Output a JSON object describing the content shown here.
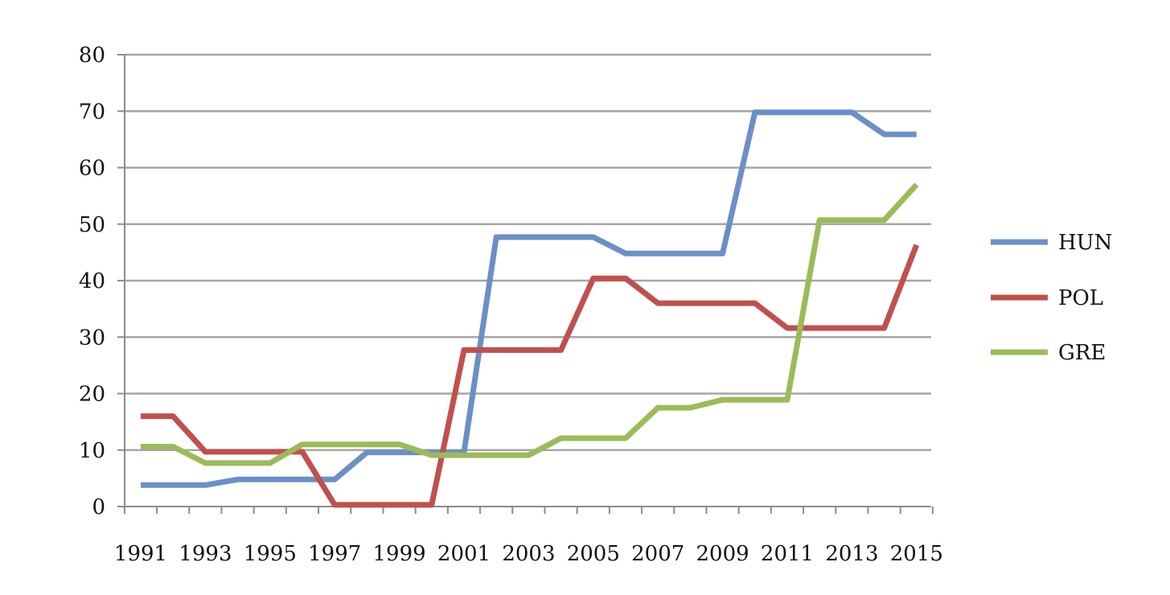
{
  "chart_data": {
    "type": "line",
    "title": "",
    "xlabel": "",
    "ylabel": "",
    "x": [
      1991,
      1992,
      1993,
      1994,
      1995,
      1996,
      1997,
      1998,
      1999,
      2000,
      2001,
      2002,
      2003,
      2004,
      2005,
      2006,
      2007,
      2008,
      2009,
      2010,
      2011,
      2012,
      2013,
      2014,
      2015
    ],
    "x_tick_labels": [
      "1991",
      "1993",
      "1995",
      "1997",
      "1999",
      "2001",
      "2003",
      "2005",
      "2007",
      "2009",
      "2011",
      "2013",
      "2015"
    ],
    "ylim": [
      0,
      80
    ],
    "y_ticks": [
      0,
      10,
      20,
      30,
      40,
      50,
      60,
      70,
      80
    ],
    "y_tick_labels": [
      "0",
      "10",
      "20",
      "30",
      "40",
      "50",
      "60",
      "70",
      "80"
    ],
    "grid": "horizontal",
    "legend_position": "right",
    "series": [
      {
        "name": "HUN",
        "color": "#6b8fc7",
        "values": [
          3.8,
          3.8,
          3.8,
          4.8,
          4.8,
          4.8,
          4.8,
          9.6,
          9.6,
          9.6,
          9.6,
          47.7,
          47.7,
          47.7,
          47.7,
          44.8,
          44.8,
          44.8,
          44.8,
          69.8,
          69.8,
          69.8,
          69.8,
          65.9,
          65.9
        ]
      },
      {
        "name": "POL",
        "color": "#c0504d",
        "values": [
          16.0,
          16.0,
          9.7,
          9.7,
          9.7,
          9.7,
          0.3,
          0.3,
          0.3,
          0.3,
          27.7,
          27.7,
          27.7,
          27.7,
          40.4,
          40.4,
          36.0,
          36.0,
          36.0,
          36.0,
          31.6,
          31.6,
          31.6,
          31.6,
          46.3
        ]
      },
      {
        "name": "GRE",
        "color": "#9bbb59",
        "values": [
          10.6,
          10.6,
          7.7,
          7.7,
          7.7,
          11.0,
          11.0,
          11.0,
          11.0,
          9.1,
          9.1,
          9.1,
          9.1,
          12.1,
          12.1,
          12.1,
          17.5,
          17.5,
          18.9,
          18.9,
          18.9,
          50.7,
          50.7,
          50.7,
          57.0
        ]
      }
    ]
  }
}
